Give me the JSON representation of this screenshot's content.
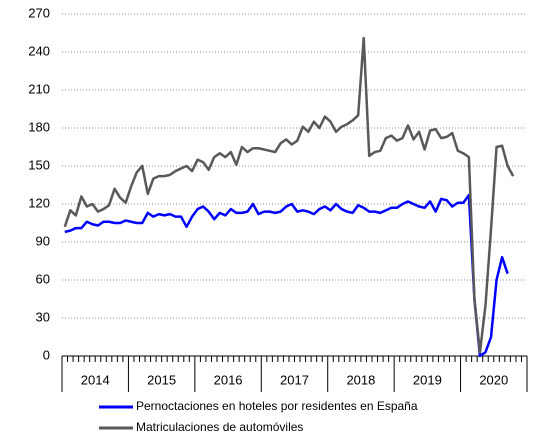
{
  "chart_data": {
    "type": "line",
    "categories": [
      null,
      null,
      null,
      null,
      null,
      null,
      null,
      null,
      null,
      null,
      null,
      null,
      null,
      null,
      null,
      null,
      null,
      null,
      null,
      null,
      null,
      null,
      null,
      null,
      null,
      null,
      null,
      null,
      null,
      null,
      null,
      null,
      null,
      null,
      null,
      null,
      null,
      null,
      null,
      null,
      null,
      null,
      null,
      null,
      null,
      null,
      null,
      null,
      null,
      null,
      null,
      null,
      null,
      null,
      null,
      null,
      null,
      null,
      null,
      null,
      null,
      null,
      null,
      null,
      null,
      null,
      null,
      null,
      null,
      null,
      null,
      null,
      null,
      null,
      null,
      null,
      null,
      null,
      null,
      null,
      null,
      null
    ],
    "year_labels": [
      "2014",
      "2015",
      "2016",
      "2017",
      "2018",
      "2019",
      "2020"
    ],
    "series": [
      {
        "name": "Pernoctaciones en hoteles por residentes en España",
        "color": "#0000ff",
        "values": [
          98,
          99,
          101,
          101,
          106,
          104,
          103,
          106,
          106,
          105,
          105,
          107,
          106,
          105,
          105,
          113,
          110,
          112,
          111,
          112,
          110,
          110,
          102,
          110,
          116,
          118,
          114,
          108,
          113,
          111,
          116,
          113,
          113,
          114,
          120,
          112,
          114,
          114,
          113,
          114,
          118,
          120,
          114,
          115,
          114,
          112,
          116,
          118,
          115,
          120,
          116,
          114,
          113,
          119,
          117,
          114,
          114,
          113,
          115,
          117,
          117,
          120,
          122,
          120,
          118,
          117,
          122,
          114,
          124,
          123,
          118,
          121,
          121,
          127,
          45,
          0,
          3,
          15,
          60,
          78,
          65,
          null
        ]
      },
      {
        "name": "Matriculaciones de automóviles",
        "color": "#595959",
        "values": [
          102,
          115,
          111,
          126,
          118,
          120,
          114,
          116,
          119,
          132,
          125,
          121,
          134,
          145,
          150,
          128,
          140,
          142,
          142,
          143,
          146,
          148,
          150,
          146,
          155,
          153,
          147,
          157,
          160,
          157,
          161,
          151,
          165,
          161,
          164,
          164,
          163,
          162,
          161,
          168,
          171,
          167,
          170,
          181,
          177,
          185,
          180,
          189,
          185,
          177,
          181,
          183,
          186,
          190,
          251,
          158,
          161,
          162,
          172,
          174,
          170,
          172,
          182,
          171,
          177,
          163,
          178,
          179,
          172,
          173,
          176,
          162,
          160,
          157,
          45,
          3,
          40,
          100,
          165,
          166,
          150,
          142
        ]
      }
    ],
    "ylim": [
      0,
      270
    ],
    "yticks": [
      0,
      30,
      60,
      90,
      120,
      150,
      180,
      210,
      240,
      270
    ],
    "grid": true
  }
}
